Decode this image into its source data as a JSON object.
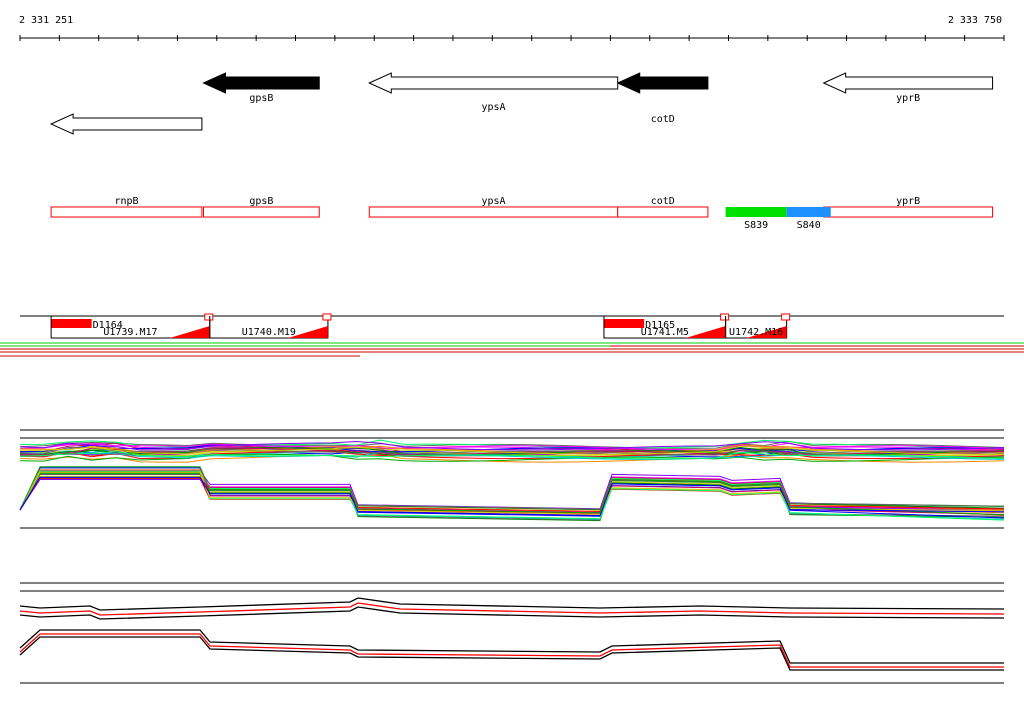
{
  "axis": {
    "start_label": "2 331 251",
    "end_label": "2 333 750",
    "start_bp": 2331251,
    "end_bp": 2333750,
    "tick_count": 26
  },
  "colors": {
    "axis": "#000000",
    "gene_filled": "#000000",
    "gene_outline": "#000000",
    "region_outline": "#ff0000",
    "segment_green": "#00e000",
    "segment_blue": "#1e90ff",
    "feature_red": "#ff0000",
    "track_green": "#00cc00",
    "track_red": "#cc0000",
    "profile_black": "#000000",
    "profile_red": "#ff0000",
    "profile_palette": [
      "#ff0000",
      "#00aa00",
      "#0000ff",
      "#ff00ff",
      "#00cccc",
      "#ff8800",
      "#8800ff",
      "#008800",
      "#cc0066",
      "#666666",
      "#00ff66",
      "#cccc00"
    ]
  },
  "genes": [
    {
      "name": "gpsB",
      "strand": "-",
      "filled": true,
      "start_bp": 2331717,
      "end_bp": 2332011
    },
    {
      "name": "ypsA",
      "strand": "-",
      "filled": false,
      "start_bp": 2332138,
      "end_bp": 2332769
    },
    {
      "name": "cotD",
      "strand": "-",
      "filled": true,
      "start_bp": 2332769,
      "end_bp": 2332998
    },
    {
      "name": "yprB",
      "strand": "-",
      "filled": false,
      "start_bp": 2333292,
      "end_bp": 2333721
    },
    {
      "name": "",
      "strand": "-",
      "filled": false,
      "start_bp": 2331330,
      "end_bp": 2331713
    }
  ],
  "regions": [
    {
      "name": "rnpB",
      "start_bp": 2331330,
      "end_bp": 2331713
    },
    {
      "name": "gpsB",
      "start_bp": 2331717,
      "end_bp": 2332011
    },
    {
      "name": "ypsA",
      "start_bp": 2332138,
      "end_bp": 2332769
    },
    {
      "name": "cotD",
      "start_bp": 2332769,
      "end_bp": 2332998
    },
    {
      "name": "yprB",
      "start_bp": 2333292,
      "end_bp": 2333721
    }
  ],
  "segments": [
    {
      "name": "S839",
      "start_bp": 2333043,
      "end_bp": 2333198,
      "color": "#00e000"
    },
    {
      "name": "S840",
      "start_bp": 2333198,
      "end_bp": 2333310,
      "color": "#1e90ff"
    }
  ],
  "features": [
    {
      "name": "D1164",
      "start_bp": 2331330,
      "end_bp": 2331433
    },
    {
      "name": "D1165",
      "start_bp": 2332734,
      "end_bp": 2332836
    }
  ],
  "transcription_units": [
    {
      "name": "U1739.M17",
      "start_bp": 2331330,
      "end_bp": 2331733
    },
    {
      "name": "U1740.M19",
      "start_bp": 2331733,
      "end_bp": 2332033
    },
    {
      "name": "U1741.M5",
      "start_bp": 2332734,
      "end_bp": 2333043
    },
    {
      "name": "U1742.M16",
      "start_bp": 2333043,
      "end_bp": 2333198
    }
  ]
}
